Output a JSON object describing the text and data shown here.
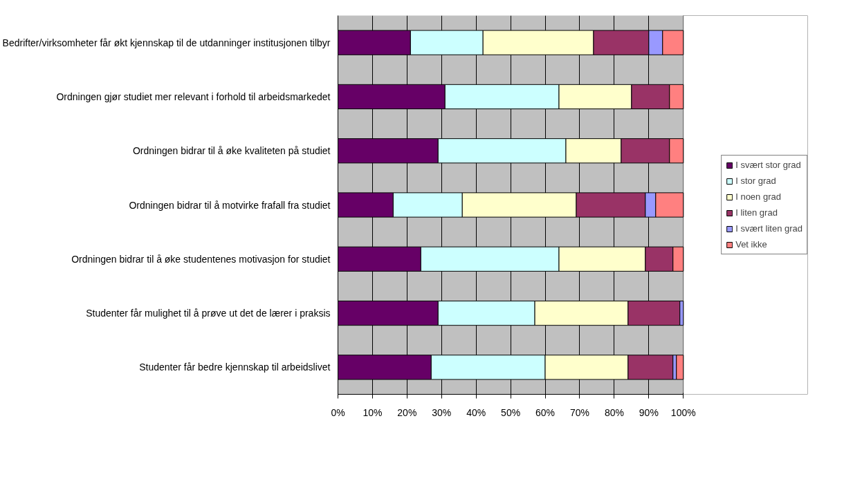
{
  "chart_data": {
    "type": "bar",
    "orientation": "horizontal",
    "stacked": true,
    "categories": [
      "Bedrifter/virksomheter får økt kjennskap til de utdanninger institusjonen tilbyr",
      "Ordningen gjør studiet mer relevant i forhold til arbeidsmarkedet",
      "Ordningen bidrar til å øke kvaliteten på studiet",
      "Ordningen bidrar til å motvirke frafall fra studiet",
      "Ordningen bidrar til å øke studentenes motivasjon for studiet",
      "Studenter får mulighet til å prøve ut det de lærer i praksis",
      "Studenter får bedre kjennskap til arbeidslivet"
    ],
    "series": [
      {
        "name": "I svært stor grad",
        "color": "#660066",
        "values": [
          21,
          31,
          29,
          16,
          24,
          29,
          27
        ]
      },
      {
        "name": "I stor grad",
        "color": "#ccffff",
        "values": [
          21,
          33,
          37,
          20,
          40,
          28,
          33
        ]
      },
      {
        "name": "I noen grad",
        "color": "#ffffcc",
        "values": [
          32,
          21,
          16,
          33,
          25,
          27,
          24
        ]
      },
      {
        "name": "I liten grad",
        "color": "#993366",
        "values": [
          16,
          11,
          14,
          20,
          8,
          15,
          13
        ]
      },
      {
        "name": "I svært liten grad",
        "color": "#9999ff",
        "values": [
          4,
          null,
          null,
          3,
          null,
          1,
          1
        ]
      },
      {
        "name": "Vet ikke",
        "color": "#ff8080",
        "values": [
          6,
          4,
          4,
          8,
          3,
          null,
          2
        ]
      }
    ],
    "xlim": [
      0,
      100
    ],
    "xticks": [
      {
        "value": 0,
        "label": "0%"
      },
      {
        "value": 10,
        "label": "10%"
      },
      {
        "value": 20,
        "label": "20%"
      },
      {
        "value": 30,
        "label": "30%"
      },
      {
        "value": 40,
        "label": "40%"
      },
      {
        "value": 50,
        "label": "50%"
      },
      {
        "value": 60,
        "label": "60%"
      },
      {
        "value": 70,
        "label": "70%"
      },
      {
        "value": 80,
        "label": "80%"
      },
      {
        "value": 90,
        "label": "90%"
      },
      {
        "value": 100,
        "label": "100%"
      }
    ],
    "grid": "x",
    "legend": "right"
  }
}
